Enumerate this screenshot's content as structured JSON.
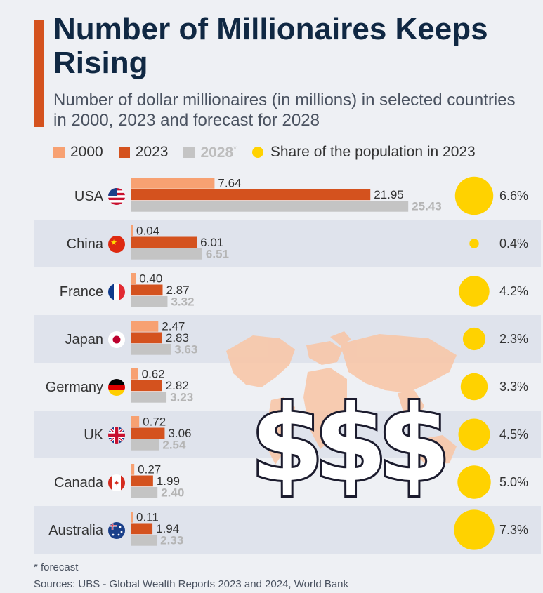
{
  "header": {
    "title": "Number of Millionaires Keeps Rising",
    "subtitle": "Number of dollar millionaires (in millions) in selected countries in 2000, 2023 and forecast for 2028"
  },
  "legend": {
    "items": [
      {
        "label": "2000",
        "color": "#f7a172"
      },
      {
        "label": "2023",
        "color": "#d4521e"
      },
      {
        "label": "2028",
        "suffix": "*",
        "color": "#c4c4c4"
      },
      {
        "label": "Share of the population in 2023",
        "color": "#ffd200"
      }
    ]
  },
  "chart_data": {
    "type": "bar",
    "orientation": "horizontal",
    "categories": [
      "USA",
      "China",
      "France",
      "Japan",
      "Germany",
      "UK",
      "Canada",
      "Australia"
    ],
    "series": [
      {
        "name": "2000",
        "values": [
          7.64,
          0.04,
          0.4,
          2.47,
          0.62,
          0.72,
          0.27,
          0.11
        ],
        "labels": [
          "7.64",
          "0.04",
          "0.40",
          "2.47",
          "0.62",
          "0.72",
          "0.27",
          "0.11"
        ]
      },
      {
        "name": "2023",
        "values": [
          21.95,
          6.01,
          2.87,
          2.83,
          2.82,
          3.06,
          1.99,
          1.94
        ],
        "labels": [
          "21.95",
          "6.01",
          "2.87",
          "2.83",
          "2.82",
          "3.06",
          "1.99",
          "1.94"
        ]
      },
      {
        "name": "2028",
        "values": [
          25.43,
          6.51,
          3.32,
          3.63,
          3.23,
          2.54,
          2.4,
          2.33
        ],
        "labels": [
          "25.43",
          "6.51",
          "3.32",
          "3.63",
          "3.23",
          "2.54",
          "2.40",
          "2.33"
        ]
      }
    ],
    "population_share": {
      "name": "Share of the population in 2023",
      "values": [
        6.6,
        0.4,
        4.2,
        2.3,
        3.3,
        4.5,
        5.0,
        7.3
      ],
      "labels": [
        "6.6%",
        "0.4%",
        "4.2%",
        "2.3%",
        "3.3%",
        "4.5%",
        "5.0%",
        "7.3%"
      ]
    },
    "colors": {
      "s2000": "#f7a172",
      "s2023": "#d4521e",
      "s2028": "#c4c4c4",
      "bubble": "#ffd200",
      "row_band": "#dfe3ec",
      "label_2028": "#b5b5b5"
    },
    "flags": [
      "us-flag-icon",
      "china-flag-icon",
      "france-flag-icon",
      "japan-flag-icon",
      "germany-flag-icon",
      "uk-flag-icon",
      "canada-flag-icon",
      "australia-flag-icon"
    ]
  },
  "decoration": {
    "overlay_text": "$$$",
    "map_color": "#f9c5a5"
  },
  "footer": {
    "note": "* forecast",
    "source": "Sources: UBS - Global Wealth Reports 2023 and 2024, World Bank"
  }
}
